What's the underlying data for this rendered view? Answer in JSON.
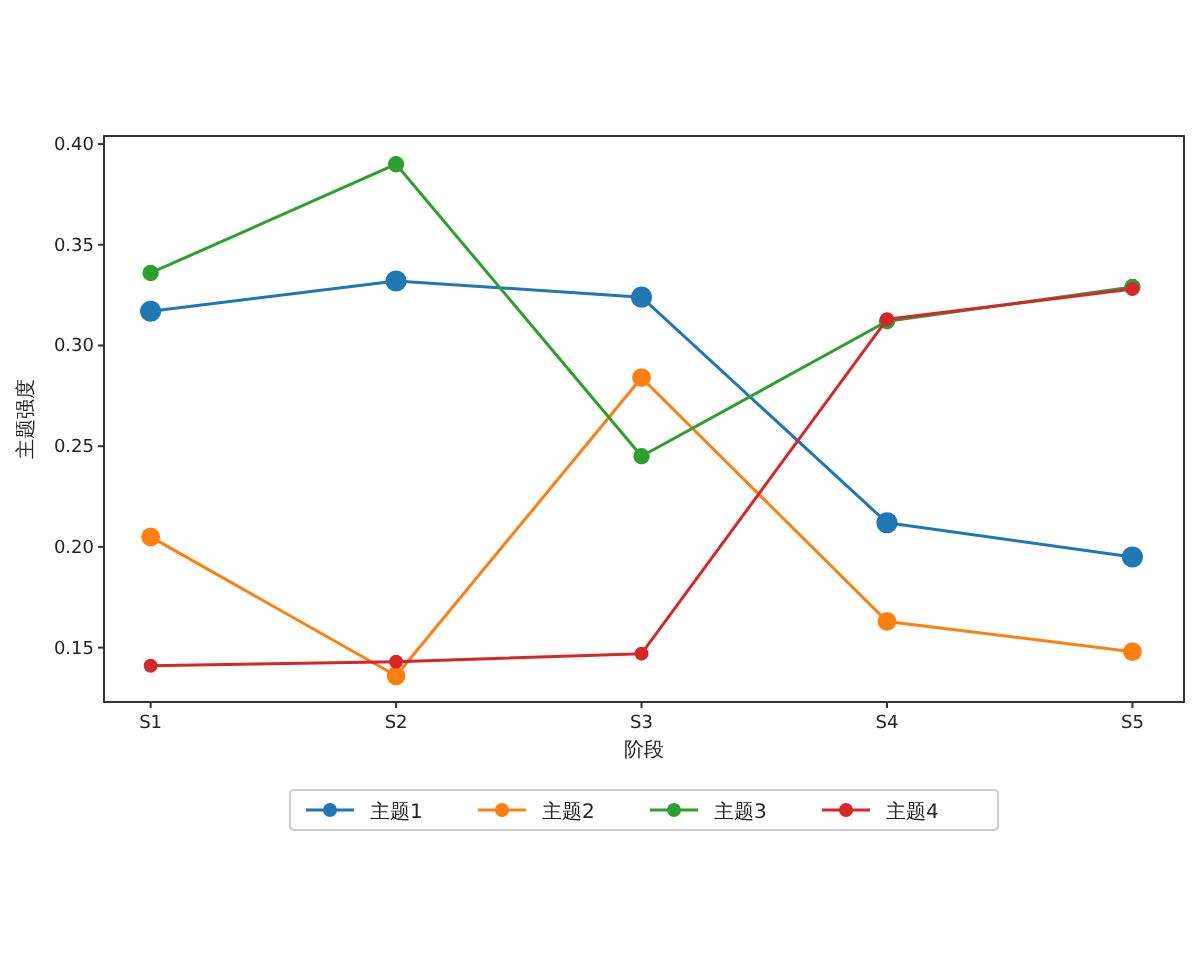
{
  "chart_data": {
    "type": "line",
    "xlabel": "阶段",
    "ylabel": "主题强度",
    "categories": [
      "S1",
      "S2",
      "S3",
      "S4",
      "S5"
    ],
    "series": [
      {
        "name": "主题1",
        "color": "#1f77b4",
        "values": [
          0.317,
          0.332,
          0.324,
          0.212,
          0.195
        ]
      },
      {
        "name": "主题2",
        "color": "#ff7f0e",
        "values": [
          0.205,
          0.136,
          0.284,
          0.163,
          0.148
        ]
      },
      {
        "name": "主题3",
        "color": "#2ca02c",
        "values": [
          0.336,
          0.39,
          0.245,
          0.312,
          0.329
        ]
      },
      {
        "name": "主题4",
        "color": "#d62728",
        "values": [
          0.141,
          0.143,
          0.147,
          0.313,
          0.328
        ]
      }
    ],
    "ylim": [
      0.123,
      0.404
    ],
    "yticks": [
      {
        "value": 0.15,
        "label": "0.15"
      },
      {
        "value": 0.2,
        "label": "0.20"
      },
      {
        "value": 0.25,
        "label": "0.25"
      },
      {
        "value": 0.3,
        "label": "0.30"
      },
      {
        "value": 0.35,
        "label": "0.35"
      },
      {
        "value": 0.4,
        "label": "0.40"
      }
    ],
    "legend": "bottom",
    "marker": "circle",
    "line_style": "solid",
    "grid": false
  }
}
